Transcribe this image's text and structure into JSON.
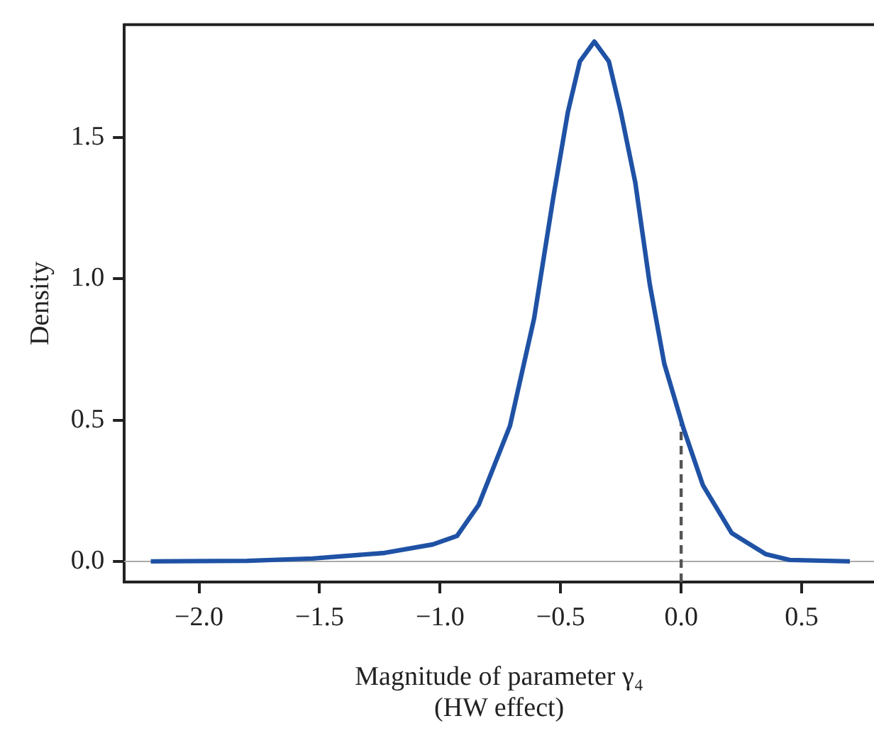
{
  "chart_data": {
    "type": "line",
    "xlabel": "Magnitude of parameter γ₄\n(HW effect)",
    "ylabel": "Density",
    "x": [
      -2.2,
      -1.8,
      -1.53,
      -1.23,
      -1.03,
      -0.93,
      -0.84,
      -0.71,
      -0.61,
      -0.53,
      -0.47,
      -0.42,
      -0.36,
      -0.3,
      -0.25,
      -0.19,
      -0.13,
      -0.07,
      0.01,
      0.09,
      0.21,
      0.35,
      0.45,
      0.7
    ],
    "series": [
      {
        "color": "#1f52a5",
        "values": [
          0,
          0.002,
          0.01,
          0.03,
          0.06,
          0.09,
          0.2,
          0.48,
          0.86,
          1.29,
          1.59,
          1.77,
          1.84,
          1.77,
          1.59,
          1.34,
          0.98,
          0.7,
          0.47,
          0.27,
          0.1,
          0.026,
          0.005,
          0
        ]
      }
    ],
    "xlim": [
      -2.31,
      0.8
    ],
    "xticks": [
      {
        "value": -2,
        "label": "−2.0"
      },
      {
        "value": -1.5,
        "label": "−1.5"
      },
      {
        "value": -1,
        "label": "−1.0"
      },
      {
        "value": -0.5,
        "label": "−0.5"
      },
      {
        "value": 0,
        "label": "0.0"
      },
      {
        "value": 0.5,
        "label": "0.5"
      }
    ],
    "ylim": [
      -0.073,
      1.9
    ],
    "yticks": [
      {
        "value": 0,
        "label": "0.0"
      },
      {
        "value": 0.5,
        "label": "0.5"
      },
      {
        "value": 1,
        "label": "1.0"
      },
      {
        "value": 1.5,
        "label": "1.5"
      }
    ],
    "ref_lines": [
      {
        "axis": "y",
        "value": 0,
        "color": "#aaaaaa",
        "line_style": "solid"
      },
      {
        "axis": "x",
        "value": 0,
        "color": "#555555",
        "line_style": "dashed"
      }
    ],
    "grid": false,
    "legend": false,
    "marker": "none",
    "line_style": "solid"
  }
}
